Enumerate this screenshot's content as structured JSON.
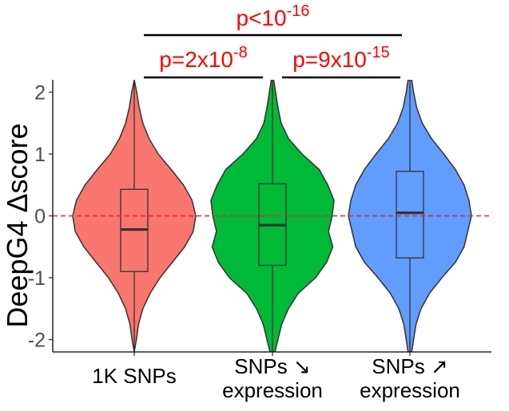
{
  "chart_data": {
    "type": "violin",
    "title": "",
    "xlabel": "",
    "ylabel": "DeepG4 Δscore",
    "ylim": [
      -2.2,
      2.2
    ],
    "yticks": [
      -2,
      -1,
      0,
      1,
      2
    ],
    "ytick_labels": [
      "-2",
      "-1",
      "0",
      "1",
      "2"
    ],
    "reference_line": {
      "y": 0,
      "style": "dashed",
      "color": "#e8262a"
    },
    "categories": [
      {
        "lines": [
          "1K SNPs"
        ]
      },
      {
        "lines": [
          "SNPs ↘",
          "expression"
        ]
      },
      {
        "lines": [
          "SNPs ↗",
          "expression"
        ]
      }
    ],
    "series": [
      {
        "color": "#f8766d",
        "box": {
          "q1": -0.9,
          "median": -0.22,
          "q3": 0.43
        },
        "density": [
          [
            -2.2,
            0.0
          ],
          [
            -2,
            0.035
          ],
          [
            -1.75,
            0.07
          ],
          [
            -1.5,
            0.14
          ],
          [
            -1.25,
            0.26
          ],
          [
            -1,
            0.42
          ],
          [
            -0.75,
            0.62
          ],
          [
            -0.5,
            0.82
          ],
          [
            -0.25,
            0.96
          ],
          [
            0,
            1.0
          ],
          [
            0.25,
            0.94
          ],
          [
            0.5,
            0.8
          ],
          [
            0.75,
            0.6
          ],
          [
            1,
            0.39
          ],
          [
            1.25,
            0.24
          ],
          [
            1.5,
            0.14
          ],
          [
            1.75,
            0.08
          ],
          [
            2,
            0.04
          ],
          [
            2.2,
            0.0
          ]
        ]
      },
      {
        "color": "#00ba38",
        "box": {
          "q1": -0.8,
          "median": -0.15,
          "q3": 0.52
        },
        "density": [
          [
            -2.2,
            0.04
          ],
          [
            -2,
            0.09
          ],
          [
            -1.75,
            0.15
          ],
          [
            -1.5,
            0.26
          ],
          [
            -1.25,
            0.42
          ],
          [
            -1,
            0.7
          ],
          [
            -0.75,
            0.88
          ],
          [
            -0.5,
            0.98
          ],
          [
            -0.25,
            0.91
          ],
          [
            0,
            0.97
          ],
          [
            0.25,
            1.0
          ],
          [
            0.5,
            0.9
          ],
          [
            0.75,
            0.76
          ],
          [
            1,
            0.48
          ],
          [
            1.25,
            0.26
          ],
          [
            1.5,
            0.14
          ],
          [
            1.75,
            0.09
          ],
          [
            2,
            0.05
          ],
          [
            2.2,
            0.02
          ]
        ]
      },
      {
        "color": "#619cff",
        "box": {
          "q1": -0.68,
          "median": 0.05,
          "q3": 0.72
        },
        "density": [
          [
            -2.2,
            0.03
          ],
          [
            -2,
            0.06
          ],
          [
            -1.75,
            0.1
          ],
          [
            -1.5,
            0.18
          ],
          [
            -1.25,
            0.32
          ],
          [
            -1,
            0.52
          ],
          [
            -0.75,
            0.74
          ],
          [
            -0.5,
            0.88
          ],
          [
            -0.25,
            0.94
          ],
          [
            0,
            1.0
          ],
          [
            0.25,
            0.96
          ],
          [
            0.5,
            0.88
          ],
          [
            0.75,
            0.74
          ],
          [
            1,
            0.55
          ],
          [
            1.25,
            0.35
          ],
          [
            1.5,
            0.2
          ],
          [
            1.75,
            0.11
          ],
          [
            2,
            0.06
          ],
          [
            2.2,
            0.03
          ]
        ]
      }
    ],
    "annotations": [
      {
        "from": 0,
        "to": 1,
        "level": 1,
        "base": "p=2x10",
        "exp": "-8",
        "color": "#ff0000"
      },
      {
        "from": 1,
        "to": 2,
        "level": 1,
        "base": "p=9x10",
        "exp": "-15",
        "color": "#ff0000"
      },
      {
        "from": 0,
        "to": 2,
        "level": 2,
        "base": "p<10",
        "exp": "-16",
        "color": "#ff0000"
      }
    ]
  }
}
